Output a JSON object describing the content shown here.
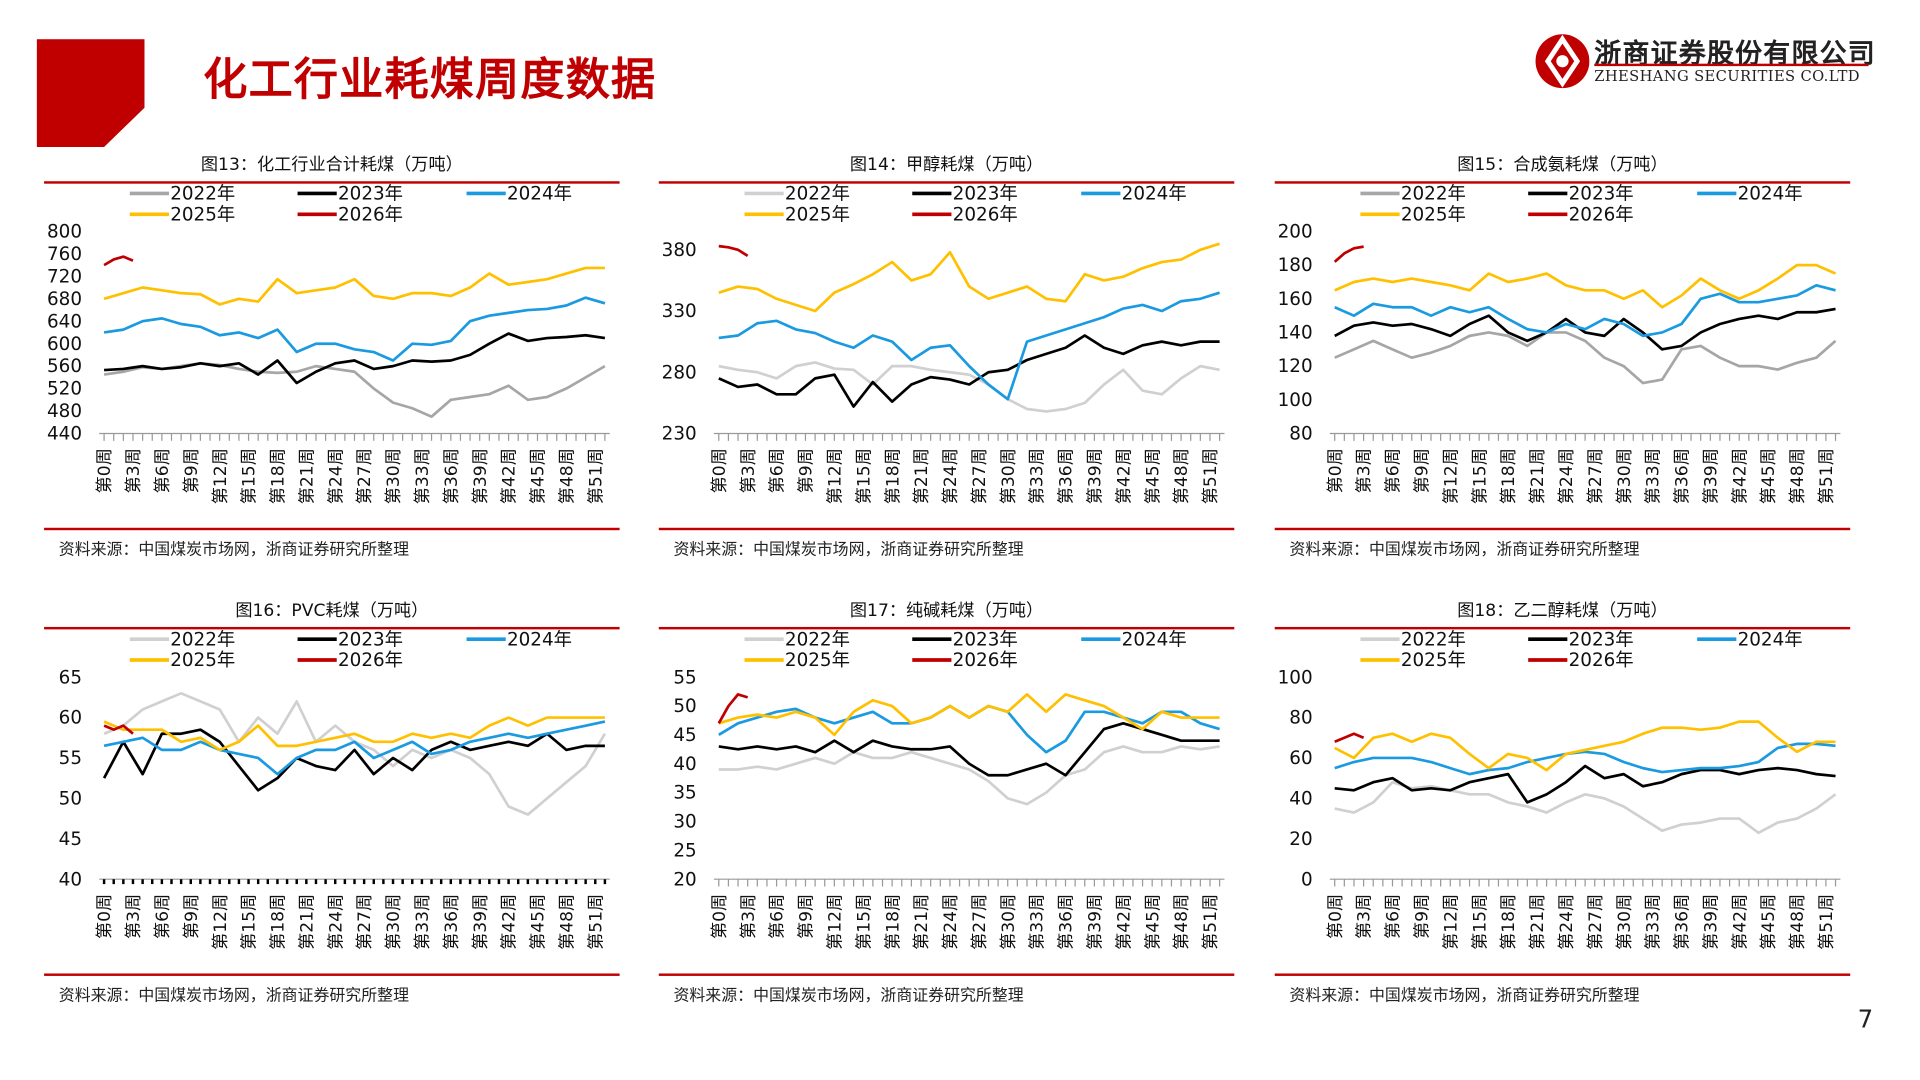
{
  "header": {
    "title": "化工行业耗煤周度数据",
    "company_cn": "浙商证券股份有限公司",
    "company_en": "ZHESHANG SECURITIES CO.LTD",
    "page_number": "7"
  },
  "source_note": "资料来源：中国煤炭市场网，浙商证券研究所整理",
  "colors": {
    "brand": "#c00000",
    "y2022": "#a6a6a6",
    "y2022_light": "#d0d0d0",
    "y2023": "#000000",
    "y2024": "#1a9ae0",
    "y2025": "#ffc000",
    "y2026": "#c00000"
  },
  "chart_data": [
    {
      "type": "line",
      "title": "图13：化工行业合计耗煤（万吨）",
      "ylim": [
        440,
        800
      ],
      "yticks": [
        440,
        480,
        520,
        560,
        600,
        640,
        680,
        720,
        760,
        800
      ],
      "legend": "top",
      "xticklabels": [
        "第0周",
        "第3周",
        "第6周",
        "第9周",
        "第12周",
        "第15周",
        "第18周",
        "第21周",
        "第24周",
        "第27周",
        "第30周",
        "第33周",
        "第36周",
        "第39周",
        "第42周",
        "第45周",
        "第48周",
        "第51周"
      ],
      "series": [
        {
          "name": "2022年",
          "x_start": 0,
          "x_step": 2,
          "values": [
            545,
            550,
            558,
            555,
            560,
            565,
            562,
            555,
            550,
            548,
            550,
            560,
            555,
            550,
            520,
            495,
            485,
            470,
            500,
            505,
            510,
            525,
            500,
            505,
            520,
            540,
            560
          ]
        },
        {
          "name": "2023年",
          "x_start": 0,
          "x_step": 2,
          "values": [
            553,
            555,
            560,
            555,
            558,
            565,
            560,
            565,
            545,
            570,
            530,
            550,
            565,
            570,
            555,
            560,
            570,
            568,
            570,
            580,
            600,
            618,
            605,
            610,
            612,
            615,
            610
          ]
        },
        {
          "name": "2024年",
          "x_start": 0,
          "x_step": 2,
          "values": [
            620,
            625,
            640,
            645,
            635,
            630,
            615,
            620,
            610,
            625,
            585,
            600,
            600,
            590,
            585,
            570,
            600,
            598,
            605,
            640,
            650,
            655,
            660,
            662,
            668,
            682,
            672
          ]
        },
        {
          "name": "2025年",
          "x_start": 0,
          "x_step": 2,
          "values": [
            680,
            690,
            700,
            695,
            690,
            688,
            670,
            680,
            675,
            715,
            690,
            695,
            700,
            715,
            685,
            680,
            690,
            690,
            685,
            700,
            725,
            705,
            710,
            715,
            725,
            735,
            735
          ]
        },
        {
          "name": "2026年",
          "x_start": 0,
          "x_step": 1,
          "values": [
            740,
            750,
            755,
            748
          ]
        }
      ]
    },
    {
      "type": "line",
      "title": "图14：甲醇耗煤（万吨）",
      "ylim": [
        230,
        395
      ],
      "yticks": [
        230,
        280,
        330,
        380
      ],
      "legend": "top",
      "xticklabels": [
        "第0周",
        "第3周",
        "第6周",
        "第9周",
        "第12周",
        "第15周",
        "第18周",
        "第21周",
        "第24周",
        "第27周",
        "第30周",
        "第33周",
        "第36周",
        "第39周",
        "第42周",
        "第45周",
        "第48周",
        "第51周"
      ],
      "series": [
        {
          "name": "2022年",
          "x_start": 0,
          "x_step": 2,
          "values": [
            285,
            282,
            280,
            275,
            285,
            288,
            283,
            282,
            270,
            285,
            285,
            282,
            280,
            278,
            270,
            258,
            250,
            248,
            250,
            255,
            270,
            282,
            265,
            262,
            275,
            285,
            282
          ]
        },
        {
          "name": "2023年",
          "x_start": 0,
          "x_step": 2,
          "values": [
            275,
            268,
            270,
            262,
            262,
            275,
            278,
            252,
            272,
            256,
            270,
            276,
            274,
            270,
            280,
            282,
            290,
            295,
            300,
            310,
            300,
            295,
            302,
            305,
            302,
            305,
            305
          ]
        },
        {
          "name": "2024年",
          "x_start": 0,
          "x_step": 2,
          "values": [
            308,
            310,
            320,
            322,
            315,
            312,
            305,
            300,
            310,
            305,
            290,
            300,
            302,
            285,
            270,
            258,
            305,
            310,
            315,
            320,
            325,
            332,
            335,
            330,
            338,
            340,
            345
          ]
        },
        {
          "name": "2025年",
          "x_start": 0,
          "x_step": 2,
          "values": [
            345,
            350,
            348,
            340,
            335,
            330,
            345,
            352,
            360,
            370,
            355,
            360,
            378,
            350,
            340,
            345,
            350,
            340,
            338,
            360,
            355,
            358,
            365,
            370,
            372,
            380,
            385
          ]
        },
        {
          "name": "2026年",
          "x_start": 0,
          "x_step": 1,
          "values": [
            383,
            382,
            380,
            375
          ]
        }
      ]
    },
    {
      "type": "line",
      "title": "图15：合成氨耗煤（万吨）",
      "ylim": [
        80,
        200
      ],
      "yticks": [
        80,
        100,
        120,
        140,
        160,
        180,
        200
      ],
      "legend": "top",
      "xticklabels": [
        "第0周",
        "第3周",
        "第6周",
        "第9周",
        "第12周",
        "第15周",
        "第18周",
        "第21周",
        "第24周",
        "第27周",
        "第30周",
        "第33周",
        "第36周",
        "第39周",
        "第42周",
        "第45周",
        "第48周",
        "第51周"
      ],
      "series": [
        {
          "name": "2022年",
          "x_start": 0,
          "x_step": 2,
          "values": [
            125,
            130,
            135,
            130,
            125,
            128,
            132,
            138,
            140,
            138,
            132,
            140,
            140,
            135,
            125,
            120,
            110,
            112,
            130,
            132,
            125,
            120,
            120,
            118,
            122,
            125,
            135
          ]
        },
        {
          "name": "2023年",
          "x_start": 0,
          "x_step": 2,
          "values": [
            138,
            144,
            146,
            144,
            145,
            142,
            138,
            145,
            150,
            140,
            135,
            140,
            148,
            140,
            138,
            148,
            140,
            130,
            132,
            140,
            145,
            148,
            150,
            148,
            152,
            152,
            154
          ]
        },
        {
          "name": "2024年",
          "x_start": 0,
          "x_step": 2,
          "values": [
            155,
            150,
            157,
            155,
            155,
            150,
            155,
            152,
            155,
            148,
            142,
            140,
            145,
            142,
            148,
            145,
            138,
            140,
            145,
            160,
            163,
            158,
            158,
            160,
            162,
            168,
            165
          ]
        },
        {
          "name": "2025年",
          "x_start": 0,
          "x_step": 2,
          "values": [
            165,
            170,
            172,
            170,
            172,
            170,
            168,
            165,
            175,
            170,
            172,
            175,
            168,
            165,
            165,
            160,
            165,
            155,
            162,
            172,
            165,
            160,
            165,
            172,
            180,
            180,
            175
          ]
        },
        {
          "name": "2026年",
          "x_start": 0,
          "x_step": 1,
          "values": [
            182,
            187,
            190,
            191
          ]
        }
      ]
    },
    {
      "type": "line",
      "title": "图16：PVC耗煤（万吨）",
      "ylim": [
        40,
        65
      ],
      "yticks": [
        40,
        45,
        50,
        55,
        60,
        65
      ],
      "legend": "top",
      "xticklabels": [
        "第0周",
        "第3周",
        "第6周",
        "第9周",
        "第12周",
        "第15周",
        "第18周",
        "第21周",
        "第24周",
        "第27周",
        "第30周",
        "第33周",
        "第36周",
        "第39周",
        "第42周",
        "第45周",
        "第48周",
        "第51周"
      ],
      "series": [
        {
          "name": "2022年",
          "x_start": 0,
          "x_step": 2,
          "values": [
            58,
            59,
            61,
            62,
            63,
            62,
            61,
            57,
            60,
            58,
            62,
            57,
            59,
            57,
            56,
            54,
            56,
            55,
            56,
            55,
            53,
            49,
            48,
            50,
            52,
            54,
            58
          ]
        },
        {
          "name": "2023年",
          "x_start": 0,
          "x_step": 2,
          "values": [
            52.5,
            57,
            53,
            58,
            58,
            58.5,
            57,
            54,
            51,
            52.5,
            55,
            54,
            53.5,
            56,
            53,
            55,
            53.5,
            56,
            57,
            56,
            56.5,
            57,
            56.5,
            58,
            56,
            56.5,
            56.5
          ]
        },
        {
          "name": "2024年",
          "x_start": 0,
          "x_step": 2,
          "values": [
            56.5,
            57,
            57.5,
            56,
            56,
            57,
            56,
            55.5,
            55,
            53,
            55,
            56,
            56,
            57,
            55,
            56,
            57,
            55.5,
            56,
            57,
            57.5,
            58,
            57.5,
            58,
            58.5,
            59,
            59.5
          ]
        },
        {
          "name": "2025年",
          "x_start": 0,
          "x_step": 2,
          "values": [
            59.5,
            58.5,
            58.5,
            58.5,
            57,
            57.5,
            56,
            57,
            59,
            56.5,
            56.5,
            57,
            57.5,
            58,
            57,
            57,
            58,
            57.5,
            58,
            57.5,
            59,
            60,
            59,
            60,
            60,
            60,
            60
          ]
        },
        {
          "name": "2026年",
          "x_start": 0,
          "x_step": 1,
          "values": [
            59,
            58.5,
            59,
            58
          ]
        }
      ]
    },
    {
      "type": "line",
      "title": "图17：纯碱耗煤（万吨）",
      "ylim": [
        20,
        55
      ],
      "yticks": [
        20,
        25,
        30,
        35,
        40,
        45,
        50,
        55
      ],
      "legend": "top",
      "xticklabels": [
        "第0周",
        "第3周",
        "第6周",
        "第9周",
        "第12周",
        "第15周",
        "第18周",
        "第21周",
        "第24周",
        "第27周",
        "第30周",
        "第33周",
        "第36周",
        "第39周",
        "第42周",
        "第45周",
        "第48周",
        "第51周"
      ],
      "series": [
        {
          "name": "2022年",
          "x_start": 0,
          "x_step": 2,
          "values": [
            39,
            39,
            39.5,
            39,
            40,
            41,
            40,
            42,
            41,
            41,
            42,
            41,
            40,
            39,
            37,
            34,
            33,
            35,
            38,
            39,
            42,
            43,
            42,
            42,
            43,
            42.5,
            43
          ]
        },
        {
          "name": "2023年",
          "x_start": 0,
          "x_step": 2,
          "values": [
            43,
            42.5,
            43,
            42.5,
            43,
            42,
            44,
            42,
            44,
            43,
            42.5,
            42.5,
            43,
            40,
            38,
            38,
            39,
            40,
            38,
            42,
            46,
            47,
            46,
            45,
            44,
            44,
            44
          ]
        },
        {
          "name": "2024年",
          "x_start": 0,
          "x_step": 2,
          "values": [
            45,
            47,
            48,
            49,
            49.5,
            48,
            47,
            48,
            49,
            47,
            47,
            48,
            50,
            48,
            50,
            49,
            45,
            42,
            44,
            49,
            49,
            48,
            47,
            49,
            49,
            47,
            46
          ]
        },
        {
          "name": "2025年",
          "x_start": 0,
          "x_step": 2,
          "values": [
            47,
            48,
            48.5,
            48,
            49,
            48,
            45,
            49,
            51,
            50,
            47,
            48,
            50,
            48,
            50,
            49,
            52,
            49,
            52,
            51,
            50,
            48,
            46,
            49,
            48,
            48,
            48
          ]
        },
        {
          "name": "2026年",
          "x_start": 0,
          "x_step": 1,
          "values": [
            47,
            50,
            52,
            51.5
          ]
        }
      ]
    },
    {
      "type": "line",
      "title": "图18：乙二醇耗煤（万吨）",
      "ylim": [
        0,
        100
      ],
      "yticks": [
        0,
        20,
        40,
        60,
        80,
        100
      ],
      "legend": "top",
      "xticklabels": [
        "第0周",
        "第3周",
        "第6周",
        "第9周",
        "第12周",
        "第15周",
        "第18周",
        "第21周",
        "第24周",
        "第27周",
        "第30周",
        "第33周",
        "第36周",
        "第39周",
        "第42周",
        "第45周",
        "第48周",
        "第51周"
      ],
      "series": [
        {
          "name": "2022年",
          "x_start": 0,
          "x_step": 2,
          "values": [
            35,
            33,
            38,
            48,
            45,
            46,
            44,
            42,
            42,
            38,
            36,
            33,
            38,
            42,
            40,
            36,
            30,
            24,
            27,
            28,
            30,
            30,
            23,
            28,
            30,
            35,
            42
          ]
        },
        {
          "name": "2023年",
          "x_start": 0,
          "x_step": 2,
          "values": [
            45,
            44,
            48,
            50,
            44,
            45,
            44,
            48,
            50,
            52,
            38,
            42,
            48,
            56,
            50,
            52,
            46,
            48,
            52,
            54,
            54,
            52,
            54,
            55,
            54,
            52,
            51
          ]
        },
        {
          "name": "2024年",
          "x_start": 0,
          "x_step": 2,
          "values": [
            55,
            58,
            60,
            60,
            60,
            58,
            55,
            52,
            54,
            55,
            58,
            60,
            62,
            63,
            62,
            58,
            55,
            53,
            54,
            55,
            55,
            56,
            58,
            65,
            67,
            67,
            66
          ]
        },
        {
          "name": "2025年",
          "x_start": 0,
          "x_step": 2,
          "values": [
            65,
            60,
            70,
            72,
            68,
            72,
            70,
            62,
            55,
            62,
            60,
            54,
            62,
            64,
            66,
            68,
            72,
            75,
            75,
            74,
            75,
            78,
            78,
            70,
            63,
            68,
            68
          ]
        },
        {
          "name": "2026年",
          "x_start": 0,
          "x_step": 1,
          "values": [
            68,
            70,
            72,
            70
          ]
        }
      ]
    }
  ]
}
